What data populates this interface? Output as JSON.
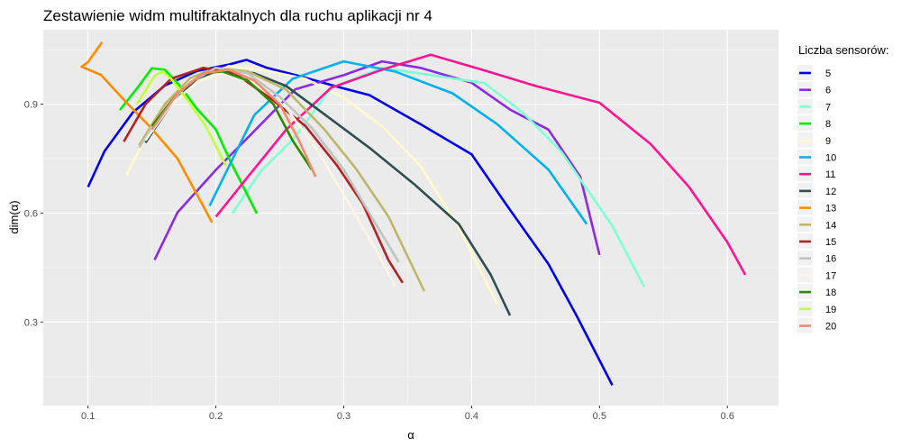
{
  "chart_data": {
    "type": "line",
    "title": "Zestawienie widm multifraktalnych dla ruchu aplikacji nr 4",
    "xlabel": "α",
    "ylabel": "dim(α)",
    "xlim": [
      0.065,
      0.64
    ],
    "ylim": [
      0.07,
      1.105
    ],
    "x_ticks": [
      0.1,
      0.2,
      0.3,
      0.4,
      0.5,
      0.6
    ],
    "x_tick_labels": [
      "0.1",
      "0.2",
      "0.3",
      "0.4",
      "0.5",
      "0.6"
    ],
    "y_ticks": [
      0.3,
      0.6,
      0.9
    ],
    "y_tick_labels": [
      "0.3",
      "0.6",
      "0.9"
    ],
    "grid": true,
    "legend": {
      "title": "Liczba sensorów:",
      "position": "right"
    },
    "series": [
      {
        "name": "5",
        "color": "#0000ee",
        "points": [
          [
            0.1,
            0.672
          ],
          [
            0.113,
            0.771
          ],
          [
            0.135,
            0.877
          ],
          [
            0.16,
            0.951
          ],
          [
            0.185,
            0.991
          ],
          [
            0.21,
            1.009
          ],
          [
            0.224,
            1.022
          ],
          [
            0.24,
            1.0
          ],
          [
            0.265,
            0.978
          ],
          [
            0.295,
            0.948
          ],
          [
            0.32,
            0.925
          ],
          [
            0.36,
            0.845
          ],
          [
            0.4,
            0.762
          ],
          [
            0.428,
            0.619
          ],
          [
            0.46,
            0.46
          ],
          [
            0.482,
            0.318
          ],
          [
            0.51,
            0.126
          ]
        ]
      },
      {
        "name": "6",
        "color": "#8a2be2",
        "points": [
          [
            0.152,
            0.471
          ],
          [
            0.17,
            0.602
          ],
          [
            0.2,
            0.719
          ],
          [
            0.23,
            0.826
          ],
          [
            0.262,
            0.941
          ],
          [
            0.3,
            0.98
          ],
          [
            0.33,
            1.018
          ],
          [
            0.36,
            1.0
          ],
          [
            0.4,
            0.959
          ],
          [
            0.43,
            0.885
          ],
          [
            0.46,
            0.83
          ],
          [
            0.485,
            0.7
          ],
          [
            0.5,
            0.485
          ]
        ]
      },
      {
        "name": "7",
        "color": "#7fffd4",
        "points": [
          [
            0.213,
            0.6
          ],
          [
            0.235,
            0.715
          ],
          [
            0.262,
            0.81
          ],
          [
            0.29,
            0.945
          ],
          [
            0.33,
            1.0
          ],
          [
            0.372,
            0.978
          ],
          [
            0.41,
            0.958
          ],
          [
            0.44,
            0.877
          ],
          [
            0.47,
            0.77
          ],
          [
            0.51,
            0.565
          ],
          [
            0.535,
            0.397
          ]
        ]
      },
      {
        "name": "8",
        "color": "#00ee00",
        "points": [
          [
            0.125,
            0.884
          ],
          [
            0.14,
            0.951
          ],
          [
            0.15,
            0.999
          ],
          [
            0.16,
            0.995
          ],
          [
            0.172,
            0.95
          ],
          [
            0.185,
            0.888
          ],
          [
            0.2,
            0.83
          ],
          [
            0.212,
            0.738
          ],
          [
            0.232,
            0.599
          ]
        ]
      },
      {
        "name": "9",
        "color": "#fffacd",
        "points": [
          [
            0.13,
            0.705
          ],
          [
            0.15,
            0.84
          ],
          [
            0.17,
            0.921
          ],
          [
            0.19,
            0.968
          ],
          [
            0.21,
            1.005
          ],
          [
            0.24,
            0.992
          ],
          [
            0.27,
            0.97
          ],
          [
            0.3,
            0.918
          ],
          [
            0.33,
            0.839
          ],
          [
            0.36,
            0.73
          ],
          [
            0.39,
            0.56
          ],
          [
            0.42,
            0.35
          ]
        ]
      },
      {
        "name": "10",
        "color": "#00b2ee",
        "points": [
          [
            0.195,
            0.62
          ],
          [
            0.23,
            0.87
          ],
          [
            0.26,
            0.97
          ],
          [
            0.3,
            1.018
          ],
          [
            0.34,
            0.99
          ],
          [
            0.385,
            0.93
          ],
          [
            0.42,
            0.845
          ],
          [
            0.46,
            0.72
          ],
          [
            0.49,
            0.57
          ]
        ]
      },
      {
        "name": "11",
        "color": "#ff1493",
        "points": [
          [
            0.2,
            0.59
          ],
          [
            0.225,
            0.7
          ],
          [
            0.255,
            0.83
          ],
          [
            0.29,
            0.945
          ],
          [
            0.33,
            0.995
          ],
          [
            0.368,
            1.036
          ],
          [
            0.41,
            0.993
          ],
          [
            0.45,
            0.95
          ],
          [
            0.5,
            0.904
          ],
          [
            0.54,
            0.79
          ],
          [
            0.57,
            0.672
          ],
          [
            0.6,
            0.52
          ],
          [
            0.614,
            0.43
          ]
        ]
      },
      {
        "name": "12",
        "color": "#2f4f4f",
        "points": [
          [
            0.145,
            0.794
          ],
          [
            0.165,
            0.9
          ],
          [
            0.185,
            0.97
          ],
          [
            0.205,
            0.997
          ],
          [
            0.23,
            0.985
          ],
          [
            0.255,
            0.95
          ],
          [
            0.285,
            0.872
          ],
          [
            0.32,
            0.78
          ],
          [
            0.355,
            0.68
          ],
          [
            0.39,
            0.57
          ],
          [
            0.415,
            0.43
          ],
          [
            0.43,
            0.318
          ]
        ]
      },
      {
        "name": "13",
        "color": "#ff8c00",
        "points": [
          [
            0.111,
            1.071
          ],
          [
            0.1,
            1.016
          ],
          [
            0.095,
            1.003
          ],
          [
            0.11,
            0.981
          ],
          [
            0.13,
            0.905
          ],
          [
            0.15,
            0.832
          ],
          [
            0.17,
            0.75
          ],
          [
            0.19,
            0.62
          ],
          [
            0.197,
            0.574
          ]
        ]
      },
      {
        "name": "14",
        "color": "#bdb76b",
        "points": [
          [
            0.14,
            0.787
          ],
          [
            0.16,
            0.9
          ],
          [
            0.18,
            0.972
          ],
          [
            0.2,
            1.0
          ],
          [
            0.225,
            0.99
          ],
          [
            0.255,
            0.94
          ],
          [
            0.285,
            0.83
          ],
          [
            0.31,
            0.72
          ],
          [
            0.335,
            0.59
          ],
          [
            0.35,
            0.48
          ],
          [
            0.363,
            0.385
          ]
        ]
      },
      {
        "name": "15",
        "color": "#b22222",
        "points": [
          [
            0.128,
            0.797
          ],
          [
            0.145,
            0.9
          ],
          [
            0.165,
            0.97
          ],
          [
            0.19,
            1.0
          ],
          [
            0.215,
            0.985
          ],
          [
            0.245,
            0.91
          ],
          [
            0.27,
            0.84
          ],
          [
            0.295,
            0.73
          ],
          [
            0.315,
            0.625
          ],
          [
            0.335,
            0.47
          ],
          [
            0.346,
            0.408
          ]
        ]
      },
      {
        "name": "16",
        "color": "#c0c4c0",
        "points": [
          [
            0.14,
            0.78
          ],
          [
            0.16,
            0.89
          ],
          [
            0.18,
            0.96
          ],
          [
            0.2,
            1.0
          ],
          [
            0.225,
            0.985
          ],
          [
            0.25,
            0.92
          ],
          [
            0.275,
            0.835
          ],
          [
            0.3,
            0.72
          ],
          [
            0.32,
            0.6
          ],
          [
            0.343,
            0.465
          ]
        ]
      },
      {
        "name": "17",
        "color": "#fdf5e6",
        "points": [
          [
            0.145,
            0.8
          ],
          [
            0.165,
            0.9
          ],
          [
            0.185,
            0.96
          ],
          [
            0.205,
            0.985
          ],
          [
            0.23,
            0.96
          ],
          [
            0.255,
            0.89
          ],
          [
            0.28,
            0.77
          ],
          [
            0.305,
            0.62
          ],
          [
            0.325,
            0.5
          ],
          [
            0.34,
            0.4
          ]
        ]
      },
      {
        "name": "18",
        "color": "#2e8b00",
        "points": [
          [
            0.15,
            0.84
          ],
          [
            0.17,
            0.93
          ],
          [
            0.19,
            0.985
          ],
          [
            0.205,
            0.99
          ],
          [
            0.225,
            0.965
          ],
          [
            0.245,
            0.9
          ],
          [
            0.26,
            0.8
          ],
          [
            0.275,
            0.72
          ]
        ]
      },
      {
        "name": "19",
        "color": "#c0ff3e",
        "points": [
          [
            0.138,
            0.899
          ],
          [
            0.152,
            0.978
          ],
          [
            0.158,
            0.99
          ],
          [
            0.165,
            0.97
          ],
          [
            0.178,
            0.91
          ],
          [
            0.192,
            0.84
          ],
          [
            0.208,
            0.73
          ]
        ]
      },
      {
        "name": "20",
        "color": "#f08a6a",
        "points": [
          [
            0.15,
            0.83
          ],
          [
            0.17,
            0.93
          ],
          [
            0.19,
            0.985
          ],
          [
            0.21,
            0.995
          ],
          [
            0.23,
            0.965
          ],
          [
            0.25,
            0.9
          ],
          [
            0.265,
            0.8
          ],
          [
            0.278,
            0.7
          ]
        ]
      }
    ]
  }
}
